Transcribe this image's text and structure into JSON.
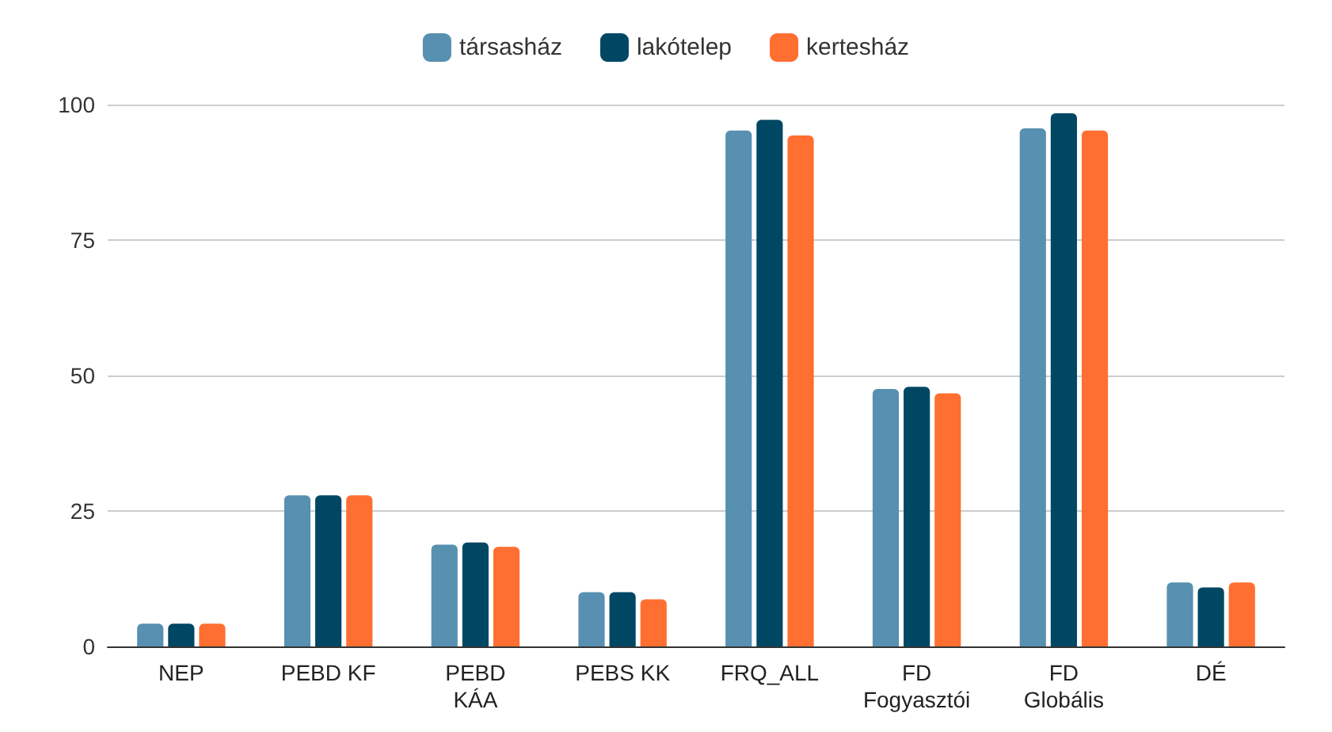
{
  "chart_data": {
    "type": "bar",
    "categories": [
      "NEP",
      "PEBD KF",
      "PEBD KÁA",
      "PEBS KK",
      "FRQ_ALL",
      "FD Fogyasztói",
      "FD Globális",
      "DÉ"
    ],
    "series": [
      {
        "name": "társasház",
        "color": "#5790b0",
        "values": [
          4.2,
          27.9,
          18.8,
          10.0,
          95.2,
          47.5,
          95.6,
          11.8
        ]
      },
      {
        "name": "lakótelep",
        "color": "#004764",
        "values": [
          4.2,
          27.9,
          19.2,
          10.0,
          97.2,
          47.9,
          98.4,
          10.9
        ]
      },
      {
        "name": "kertesház",
        "color": "#ff6f31",
        "values": [
          4.2,
          27.9,
          18.4,
          8.7,
          94.3,
          46.7,
          95.2,
          11.8
        ]
      }
    ],
    "ylim": [
      0,
      100
    ],
    "yticks": [
      0,
      25,
      50,
      75,
      100
    ],
    "grid": "y",
    "legend": "top"
  }
}
